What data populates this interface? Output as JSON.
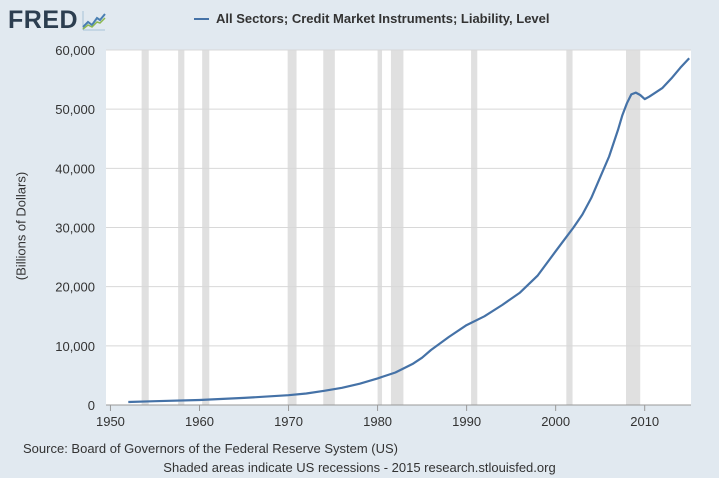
{
  "header": {
    "logo_text": "FRED",
    "logo_icon": "trend-line-chart-icon"
  },
  "footer": {
    "source": "Source: Board of Governors of the Federal Reserve System (US)",
    "note": "Shaded areas indicate US recessions - 2015 research.stlouisfed.org"
  },
  "colors": {
    "background": "#e1e9f0",
    "plot_background": "#ffffff",
    "series": "#4572a7",
    "recession": "#e0e0e0",
    "grid": "#d8d8d8"
  },
  "chart_data": {
    "type": "line",
    "title": "",
    "xlabel": "",
    "ylabel": "(Billions of Dollars)",
    "xlim": [
      1949.5,
      2015.2
    ],
    "ylim": [
      0,
      60000
    ],
    "xticks": [
      1950,
      1960,
      1970,
      1980,
      1990,
      2000,
      2010
    ],
    "yticks": [
      0,
      10000,
      20000,
      30000,
      40000,
      50000,
      60000
    ],
    "ytick_labels": [
      "0",
      "10,000",
      "20,000",
      "30,000",
      "40,000",
      "50,000",
      "60,000"
    ],
    "grid": "horizontal",
    "legend": "top",
    "recessions": [
      [
        1953.5,
        1954.3
      ],
      [
        1957.6,
        1958.3
      ],
      [
        1960.3,
        1961.1
      ],
      [
        1969.9,
        1970.9
      ],
      [
        1973.9,
        1975.2
      ],
      [
        1980.0,
        1980.5
      ],
      [
        1981.5,
        1982.9
      ],
      [
        1990.5,
        1991.2
      ],
      [
        2001.2,
        2001.9
      ],
      [
        2007.9,
        2009.5
      ]
    ],
    "series": [
      {
        "name": "All Sectors; Credit Market Instruments; Liability, Level",
        "x": [
          1952,
          1955,
          1960,
          1965,
          1970,
          1972,
          1974,
          1976,
          1978,
          1980,
          1982,
          1984,
          1985,
          1986,
          1988,
          1990,
          1992,
          1994,
          1996,
          1998,
          2000,
          2001,
          2002,
          2003,
          2004,
          2005,
          2006,
          2007,
          2007.5,
          2008,
          2008.5,
          2009,
          2009.5,
          2010,
          2010.5,
          2011,
          2012,
          2013,
          2014,
          2015
        ],
        "values": [
          500,
          650,
          850,
          1200,
          1650,
          1950,
          2400,
          2900,
          3600,
          4500,
          5500,
          7000,
          8000,
          9300,
          11500,
          13500,
          15000,
          16900,
          19000,
          21900,
          26000,
          28000,
          30000,
          32200,
          35000,
          38500,
          42000,
          46500,
          49000,
          51000,
          52500,
          52800,
          52400,
          51700,
          52100,
          52600,
          53600,
          55200,
          57000,
          58600
        ]
      }
    ]
  }
}
